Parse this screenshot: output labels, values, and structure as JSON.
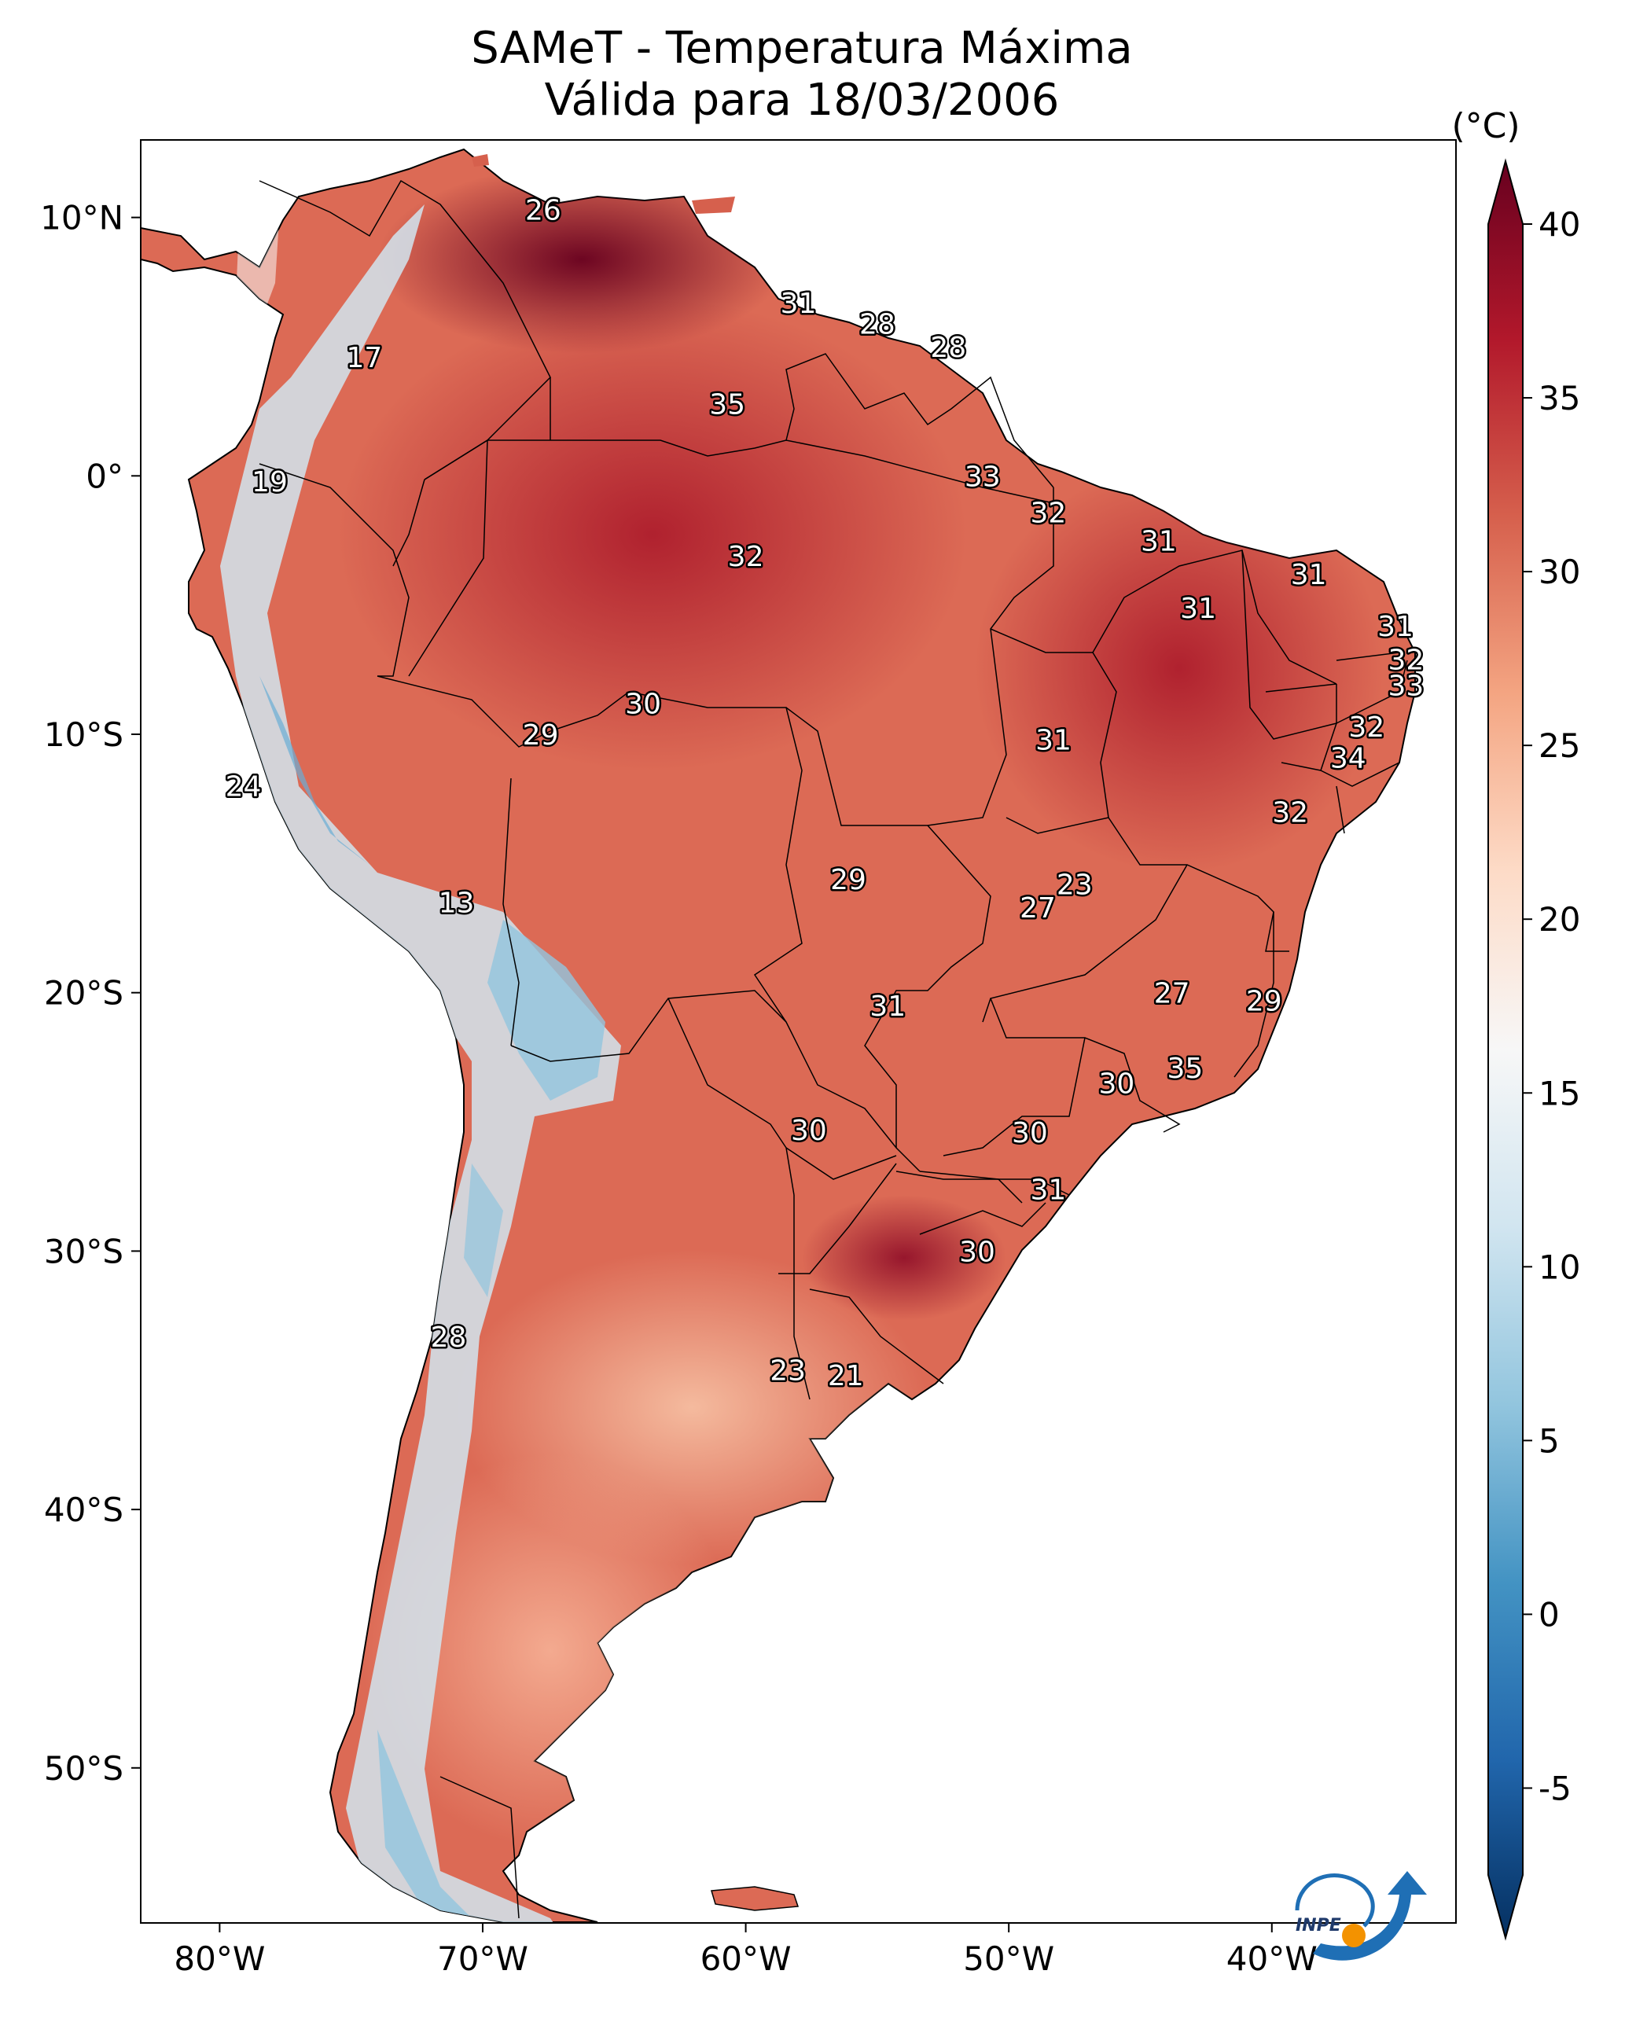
{
  "title": {
    "line1": "SAMeT - Temperatura Máxima",
    "line2": "Válida para 18/03/2006"
  },
  "map": {
    "lon_range": [
      -83,
      -33
    ],
    "lat_range": [
      -56,
      13
    ],
    "lon_ticks": [
      {
        "lon": -80,
        "label": "80°W"
      },
      {
        "lon": -70,
        "label": "70°W"
      },
      {
        "lon": -60,
        "label": "60°W"
      },
      {
        "lon": -50,
        "label": "50°W"
      },
      {
        "lon": -40,
        "label": "40°W"
      }
    ],
    "lat_ticks": [
      {
        "lat": 10,
        "label": "10°N"
      },
      {
        "lat": 0,
        "label": "0°"
      },
      {
        "lat": -10,
        "label": "10°S"
      },
      {
        "lat": -20,
        "label": "20°S"
      },
      {
        "lat": -30,
        "label": "30°S"
      },
      {
        "lat": -40,
        "label": "40°S"
      },
      {
        "lat": -50,
        "label": "50°S"
      }
    ],
    "station_labels": [
      {
        "lon": -67.7,
        "lat": 10.3,
        "value": "26"
      },
      {
        "lon": -58.0,
        "lat": 6.7,
        "value": "31"
      },
      {
        "lon": -55.0,
        "lat": 5.9,
        "value": "28"
      },
      {
        "lon": -52.3,
        "lat": 5.0,
        "value": "28"
      },
      {
        "lon": -74.5,
        "lat": 4.6,
        "value": "17"
      },
      {
        "lon": -60.7,
        "lat": 2.8,
        "value": "35"
      },
      {
        "lon": -51.0,
        "lat": 0.0,
        "value": "33"
      },
      {
        "lon": -78.1,
        "lat": -0.2,
        "value": "19"
      },
      {
        "lon": -48.5,
        "lat": -1.4,
        "value": "32"
      },
      {
        "lon": -44.3,
        "lat": -2.5,
        "value": "31"
      },
      {
        "lon": -60.0,
        "lat": -3.1,
        "value": "32"
      },
      {
        "lon": -38.6,
        "lat": -3.8,
        "value": "31"
      },
      {
        "lon": -42.8,
        "lat": -5.1,
        "value": "31"
      },
      {
        "lon": -35.3,
        "lat": -5.8,
        "value": "31"
      },
      {
        "lon": -34.9,
        "lat": -7.1,
        "value": "32"
      },
      {
        "lon": -34.9,
        "lat": -8.1,
        "value": "33"
      },
      {
        "lon": -63.9,
        "lat": -8.8,
        "value": "30"
      },
      {
        "lon": -67.8,
        "lat": -10.0,
        "value": "29"
      },
      {
        "lon": -48.3,
        "lat": -10.2,
        "value": "31"
      },
      {
        "lon": -36.4,
        "lat": -9.7,
        "value": "32"
      },
      {
        "lon": -37.1,
        "lat": -10.9,
        "value": "34"
      },
      {
        "lon": -79.1,
        "lat": -12.0,
        "value": "24"
      },
      {
        "lon": -39.3,
        "lat": -13.0,
        "value": "32"
      },
      {
        "lon": -56.1,
        "lat": -15.6,
        "value": "29"
      },
      {
        "lon": -47.5,
        "lat": -15.8,
        "value": "23"
      },
      {
        "lon": -48.9,
        "lat": -16.7,
        "value": "27"
      },
      {
        "lon": -71.0,
        "lat": -16.5,
        "value": "13"
      },
      {
        "lon": -43.8,
        "lat": -20.0,
        "value": "27"
      },
      {
        "lon": -40.3,
        "lat": -20.3,
        "value": "29"
      },
      {
        "lon": -54.6,
        "lat": -20.5,
        "value": "31"
      },
      {
        "lon": -43.3,
        "lat": -22.9,
        "value": "35"
      },
      {
        "lon": -45.9,
        "lat": -23.5,
        "value": "30"
      },
      {
        "lon": -57.6,
        "lat": -25.3,
        "value": "30"
      },
      {
        "lon": -49.2,
        "lat": -25.4,
        "value": "30"
      },
      {
        "lon": -48.5,
        "lat": -27.6,
        "value": "31"
      },
      {
        "lon": -51.2,
        "lat": -30.0,
        "value": "30"
      },
      {
        "lon": -71.3,
        "lat": -33.3,
        "value": "28"
      },
      {
        "lon": -58.4,
        "lat": -34.6,
        "value": "23"
      },
      {
        "lon": -56.2,
        "lat": -34.8,
        "value": "21"
      }
    ]
  },
  "colorbar": {
    "unit": "(°C)",
    "min": -7.5,
    "max": 40,
    "ticks": [
      {
        "value": -5,
        "label": "-5"
      },
      {
        "value": 0,
        "label": "0"
      },
      {
        "value": 5,
        "label": "5"
      },
      {
        "value": 10,
        "label": "10"
      },
      {
        "value": 15,
        "label": "15"
      },
      {
        "value": 20,
        "label": "20"
      },
      {
        "value": 25,
        "label": "25"
      },
      {
        "value": 30,
        "label": "30"
      },
      {
        "value": 35,
        "label": "35"
      },
      {
        "value": 40,
        "label": "40"
      }
    ],
    "colors": [
      "#053061",
      "#2166ac",
      "#4393c3",
      "#92c5de",
      "#d1e5f0",
      "#f7f7f7",
      "#fddbc7",
      "#f4a582",
      "#d6604d",
      "#b2182b",
      "#67001f"
    ]
  },
  "logo": {
    "text": "INPE",
    "colors": {
      "blue": "#1f6fb5",
      "orange": "#f39200"
    }
  }
}
